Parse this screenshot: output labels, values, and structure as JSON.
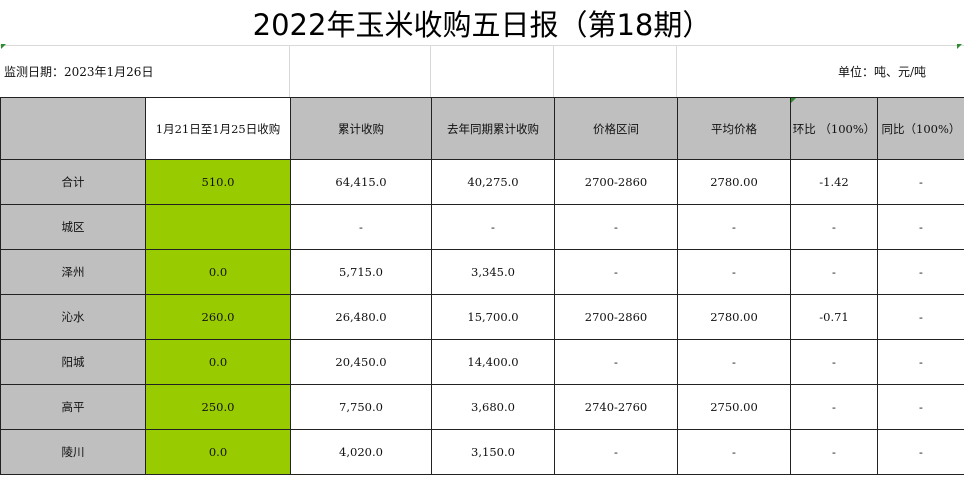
{
  "title": "2022年玉米收购五日报（第18期）",
  "monitor_date": "监测日期：2023年1月26日",
  "unit": "单位：吨、元/吨",
  "colors": {
    "header_bg": "#bfbfbf",
    "highlight_green": "#99cc00",
    "grid_line": "#222222"
  },
  "columns": [
    "",
    "1月21日至1月25日收购",
    "累计收购",
    "去年同期累计收购",
    "价格区间",
    "平均价格",
    "环比 （100%）",
    "同比（100%）"
  ],
  "rows": [
    {
      "region": "合计",
      "period": "510.0",
      "cumulative": "64,415.0",
      "last_year": "40,275.0",
      "price_range": "2700-2860",
      "avg_price": "2780.00",
      "mom": "-1.42",
      "yoy": "-"
    },
    {
      "region": "城区",
      "period": "",
      "cumulative": "-",
      "last_year": "-",
      "price_range": "-",
      "avg_price": "-",
      "mom": "-",
      "yoy": "-"
    },
    {
      "region": "泽州",
      "period": "0.0",
      "cumulative": "5,715.0",
      "last_year": "3,345.0",
      "price_range": "-",
      "avg_price": "-",
      "mom": "-",
      "yoy": "-"
    },
    {
      "region": "沁水",
      "period": "260.0",
      "cumulative": "26,480.0",
      "last_year": "15,700.0",
      "price_range": "2700-2860",
      "avg_price": "2780.00",
      "mom": "-0.71",
      "yoy": "-"
    },
    {
      "region": "阳城",
      "period": "0.0",
      "cumulative": "20,450.0",
      "last_year": "14,400.0",
      "price_range": "-",
      "avg_price": "-",
      "mom": "-",
      "yoy": "-"
    },
    {
      "region": "高平",
      "period": "250.0",
      "cumulative": "7,750.0",
      "last_year": "3,680.0",
      "price_range": "2740-2760",
      "avg_price": "2750.00",
      "mom": "-",
      "yoy": "-"
    },
    {
      "region": "陵川",
      "period": "0.0",
      "cumulative": "4,020.0",
      "last_year": "3,150.0",
      "price_range": "-",
      "avg_price": "-",
      "mom": "-",
      "yoy": "-"
    }
  ]
}
